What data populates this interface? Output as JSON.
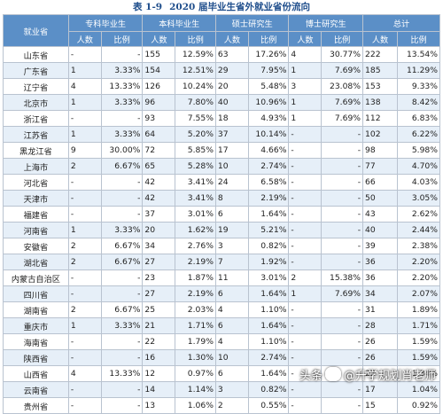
{
  "title": {
    "number": "表 1-9",
    "text": "2020 届毕业生省外就业省份流向"
  },
  "headers": {
    "province": "就业省",
    "groups": [
      "专科毕业生",
      "本科毕业生",
      "硕士研究生",
      "博士研究生",
      "总计"
    ],
    "count": "人数",
    "ratio": "比例"
  },
  "rows": [
    {
      "province": "山东省",
      "cells": [
        "-",
        "-",
        "155",
        "12.59%",
        "63",
        "17.26%",
        "4",
        "30.77%",
        "222",
        "13.54%"
      ]
    },
    {
      "province": "广东省",
      "cells": [
        "1",
        "3.33%",
        "154",
        "12.51%",
        "29",
        "7.95%",
        "1",
        "7.69%",
        "185",
        "11.29%"
      ]
    },
    {
      "province": "辽宁省",
      "cells": [
        "4",
        "13.33%",
        "126",
        "10.24%",
        "20",
        "5.48%",
        "3",
        "23.08%",
        "153",
        "9.33%"
      ]
    },
    {
      "province": "北京市",
      "cells": [
        "1",
        "3.33%",
        "96",
        "7.80%",
        "40",
        "10.96%",
        "1",
        "7.69%",
        "138",
        "8.42%"
      ]
    },
    {
      "province": "浙江省",
      "cells": [
        "-",
        "-",
        "93",
        "7.55%",
        "18",
        "4.93%",
        "1",
        "7.69%",
        "112",
        "6.83%"
      ]
    },
    {
      "province": "江苏省",
      "cells": [
        "1",
        "3.33%",
        "64",
        "5.20%",
        "37",
        "10.14%",
        "-",
        "-",
        "102",
        "6.22%"
      ]
    },
    {
      "province": "黑龙江省",
      "cells": [
        "9",
        "30.00%",
        "72",
        "5.85%",
        "17",
        "4.66%",
        "-",
        "-",
        "98",
        "5.98%"
      ]
    },
    {
      "province": "上海市",
      "cells": [
        "2",
        "6.67%",
        "65",
        "5.28%",
        "10",
        "2.74%",
        "-",
        "-",
        "77",
        "4.70%"
      ]
    },
    {
      "province": "河北省",
      "cells": [
        "-",
        "-",
        "42",
        "3.41%",
        "24",
        "6.58%",
        "-",
        "-",
        "66",
        "4.03%"
      ]
    },
    {
      "province": "天津市",
      "cells": [
        "-",
        "-",
        "42",
        "3.41%",
        "8",
        "2.19%",
        "-",
        "-",
        "50",
        "3.05%"
      ]
    },
    {
      "province": "福建省",
      "cells": [
        "-",
        "-",
        "37",
        "3.01%",
        "6",
        "1.64%",
        "-",
        "-",
        "43",
        "2.62%"
      ]
    },
    {
      "province": "河南省",
      "cells": [
        "1",
        "3.33%",
        "20",
        "1.62%",
        "19",
        "5.21%",
        "-",
        "-",
        "40",
        "2.44%"
      ]
    },
    {
      "province": "安徽省",
      "cells": [
        "2",
        "6.67%",
        "34",
        "2.76%",
        "3",
        "0.82%",
        "-",
        "-",
        "39",
        "2.38%"
      ]
    },
    {
      "province": "湖北省",
      "cells": [
        "2",
        "6.67%",
        "27",
        "2.19%",
        "7",
        "1.92%",
        "-",
        "-",
        "36",
        "2.20%"
      ]
    },
    {
      "province": "内蒙古自治区",
      "cells": [
        "-",
        "-",
        "23",
        "1.87%",
        "11",
        "3.01%",
        "2",
        "15.38%",
        "36",
        "2.20%"
      ]
    },
    {
      "province": "四川省",
      "cells": [
        "-",
        "-",
        "27",
        "2.19%",
        "6",
        "1.64%",
        "1",
        "7.69%",
        "34",
        "2.07%"
      ]
    },
    {
      "province": "湖南省",
      "cells": [
        "2",
        "6.67%",
        "25",
        "2.03%",
        "4",
        "1.10%",
        "-",
        "-",
        "31",
        "1.89%"
      ]
    },
    {
      "province": "重庆市",
      "cells": [
        "1",
        "3.33%",
        "21",
        "1.71%",
        "6",
        "1.64%",
        "-",
        "-",
        "28",
        "1.71%"
      ]
    },
    {
      "province": "海南省",
      "cells": [
        "-",
        "-",
        "22",
        "1.79%",
        "4",
        "1.10%",
        "-",
        "-",
        "26",
        "1.59%"
      ]
    },
    {
      "province": "陕西省",
      "cells": [
        "-",
        "-",
        "16",
        "1.30%",
        "10",
        "2.74%",
        "-",
        "-",
        "26",
        "1.59%"
      ]
    },
    {
      "province": "山西省",
      "cells": [
        "4",
        "13.33%",
        "12",
        "0.97%",
        "6",
        "1.64%",
        "-",
        "-",
        "22",
        "1.34%"
      ]
    },
    {
      "province": "云南省",
      "cells": [
        "-",
        "-",
        "14",
        "1.14%",
        "3",
        "0.82%",
        "-",
        "-",
        "17",
        "1.04%"
      ]
    },
    {
      "province": "贵州省",
      "cells": [
        "-",
        "-",
        "13",
        "1.06%",
        "2",
        "0.55%",
        "-",
        "-",
        "15",
        "0.92%"
      ]
    }
  ],
  "watermark": {
    "source": "头条",
    "account": "@升学规划肖老师"
  }
}
